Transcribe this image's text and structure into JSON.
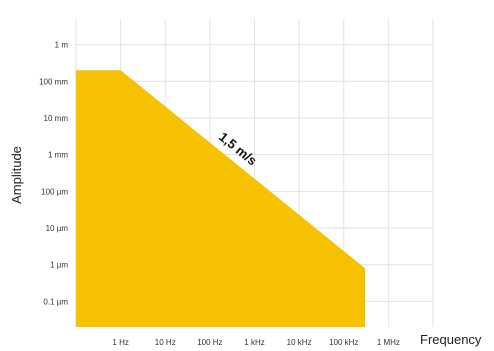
{
  "chart_data": {
    "type": "area",
    "xlabel": "Frequency",
    "ylabel": "Amplitude",
    "x_scale": "log",
    "y_scale": "log",
    "x_ticks": [
      {
        "value": 1,
        "label": "1 Hz"
      },
      {
        "value": 10,
        "label": "10 Hz"
      },
      {
        "value": 100,
        "label": "100 Hz"
      },
      {
        "value": 1000,
        "label": "1 kHz"
      },
      {
        "value": 10000,
        "label": "10 kHz"
      },
      {
        "value": 100000,
        "label": "100 kHz"
      },
      {
        "value": 1000000,
        "label": "1 MHz"
      }
    ],
    "y_ticks": [
      {
        "value": 1,
        "label": "1 m"
      },
      {
        "value": 0.1,
        "label": "100 mm"
      },
      {
        "value": 0.01,
        "label": "10 mm"
      },
      {
        "value": 0.001,
        "label": "1 mm"
      },
      {
        "value": 0.0001,
        "label": "100 µm"
      },
      {
        "value": 1e-05,
        "label": "10 µm"
      },
      {
        "value": 1e-06,
        "label": "1 µm"
      },
      {
        "value": 1e-07,
        "label": "0.1 µm"
      }
    ],
    "xlim": [
      0.1,
      10000000
    ],
    "ylim": [
      2e-08,
      5
    ],
    "area": {
      "x": [
        0.1,
        1,
        300000
      ],
      "y": [
        0.2,
        0.2,
        8e-07
      ],
      "color": "#f5c100"
    },
    "annotation": {
      "text": "1,5 m/s",
      "x": 300,
      "y": 0.0008
    },
    "grid": true
  }
}
